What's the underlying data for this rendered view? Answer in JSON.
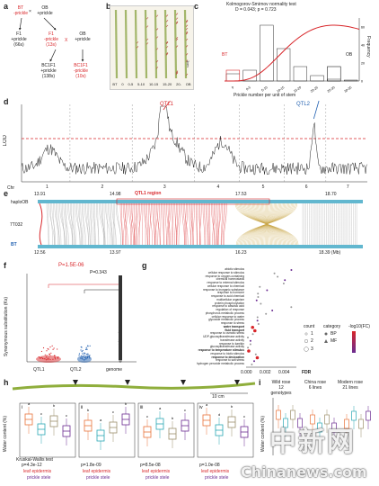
{
  "panel_labels": [
    "a",
    "b",
    "c",
    "d",
    "e",
    "f",
    "g",
    "h",
    "i"
  ],
  "panel_a": {
    "bt": "BT",
    "bt_sub": "-prickle",
    "ob": "OB",
    "ob_sub": "+prickle",
    "f1_left": "F1",
    "f1_left_sub": "+prickle",
    "f1_left_n": "(66s)",
    "f1_right": "F1",
    "f1_right_sub": "-prickle",
    "f1_right_n": "(13s)",
    "cross": "X",
    "ob2": "OB",
    "ob2_sub": "+prickle",
    "bc_left": "BC1F1",
    "bc_left_sub": "+prickle",
    "bc_left_n": "(138s)",
    "bc_right": "BC1F1",
    "bc_right_sub": "-prickle",
    "bc_right_n": "(10s)"
  },
  "panel_b": {
    "x_labels": [
      "BT",
      "0",
      "0-5",
      "5-10",
      "10-15",
      "15-20",
      "20-",
      "OB"
    ],
    "scale": "1cm"
  },
  "panel_c": {
    "test_title": "Kolmogorov-Smirnov normality test",
    "test_stats": "D = 0.043; p = 0.723",
    "bt_label": "BT",
    "ob_label": "OB",
    "xlabel": "Prickle number per unit of stem",
    "ylabel": "Frequency"
  },
  "panel_d": {
    "ylabel": "LOD",
    "qtl1": "QTL1",
    "qtl2": "QTL2",
    "chr_prefix": "Chr",
    "chromosomes": [
      "1",
      "2",
      "3",
      "4",
      "5",
      "6",
      "7"
    ]
  },
  "panel_e": {
    "top_label": "haploOB",
    "bottom_label": "BT",
    "marker": "7T032",
    "region": "QTL1 region",
    "top_coords": [
      "13.91",
      "14.98",
      "17.53",
      "18.70"
    ],
    "bottom_coords": [
      "12.56",
      "13.97",
      "16.23",
      "18.39 (Mb)"
    ]
  },
  "panel_f": {
    "pvalue_1": "P=1.5E-06",
    "pvalue_2": "P=0.343",
    "ylabel": "Synonymous substitution (Ks)",
    "groups": [
      "QTL1",
      "QTL2",
      "genome"
    ]
  },
  "panel_g": {
    "terms": [
      "abiotic stimulus",
      "cellular response to stimulus",
      "response to oxygen-containing",
      "chemical homeostasis",
      "response to external stimulus",
      "cellular response to chemical",
      "response to inorganic substance",
      "response to hormone",
      "response to acid chemical",
      "multicellular organism",
      "protein phosphorylation",
      "response to abscisic acid",
      "regulation of response",
      "phosphorus metabolic process",
      "cellular response to water",
      "glycoside metabolic process",
      "response to stress",
      "water transport",
      "fluid transport",
      "response to osmotic stress",
      "UDP-glucosyltransferase activity",
      "transferase activity",
      "response to karrikin",
      "glucosyltransferase activity",
      "response to temperature stimulus",
      "response to biotic stimulus",
      "response to desiccation",
      "response to salt stress",
      "hydrogen peroxide metabolic process"
    ],
    "bold_terms": [
      "water transport",
      "fluid transport",
      "response to temperature stimulus",
      "response to desiccation"
    ],
    "xlabel": "FDR",
    "x_ticks": [
      "0.000",
      "0.002",
      "0.004"
    ],
    "legend_count_title": "count",
    "legend_count": [
      "1",
      "2",
      "3"
    ],
    "legend_category_title": "category",
    "legend_categories": [
      "BP",
      "MF"
    ],
    "legend_fc_title": "-log10(FC)"
  },
  "panel_h": {
    "subpanels": [
      "i",
      "ii",
      "iii",
      "iv"
    ],
    "scale": "10 cm",
    "ylabel": "Water content (%)",
    "test_name": "Kruskal-Wallis test",
    "pvalues": [
      "p=4.3e-12",
      "p=1.8e-09",
      "p=8.5e-08",
      "p=1.0e-08"
    ],
    "x_top": [
      "leaf",
      "epidermis"
    ],
    "x_bottom": [
      "prickle",
      "stele"
    ],
    "letters": [
      [
        "a",
        "c",
        "b",
        "c"
      ],
      [
        "b",
        "a",
        "c",
        "b"
      ],
      [
        "c",
        "a",
        "b",
        "c"
      ],
      [
        "a",
        "d",
        "b",
        "c"
      ]
    ]
  },
  "panel_i": {
    "groups": [
      {
        "name": "Wild rose",
        "n": "12 genotypes"
      },
      {
        "name": "China rose",
        "n": "6 lines"
      },
      {
        "name": "Modern rose",
        "n": "21 lines"
      }
    ],
    "ylabel": "Water content (%)"
  },
  "watermark": {
    "cn": "中新网",
    "en": "Chinanews.com"
  },
  "colors": {
    "red": "#d8262a",
    "blue": "#1f5fb0",
    "gold": "#c9a74a",
    "grey": "#9a9a9a",
    "orange": "#e8733a",
    "teal": "#2aa7b5",
    "purple": "#6b2c91"
  }
}
